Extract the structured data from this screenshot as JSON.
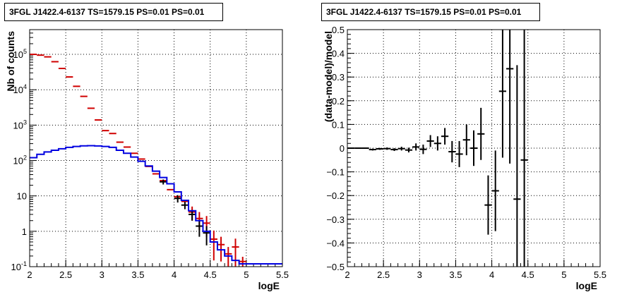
{
  "panels": {
    "left_title": "3FGL J1422.4-6137 TS=1579.15 PS=0.01 PS=0.01",
    "right_title": "3FGL J1422.4-6137 TS=1579.15 PS=0.01 PS=0.01"
  },
  "chart_data": [
    {
      "type": "line",
      "title": "3FGL J1422.4-6137 TS=1579.15 PS=0.01 PS=0.01",
      "xlabel": "logE",
      "ylabel": "Nb of counts",
      "xlim": [
        2,
        5.5
      ],
      "ylim": [
        0.1,
        500000
      ],
      "yscale": "log",
      "grid": true,
      "x_ticks": [
        "2",
        "2.5",
        "3",
        "3.5",
        "4",
        "4.5",
        "5",
        "5.5"
      ],
      "y_ticks": [
        "10^{-1}",
        "1",
        "10",
        "10^{2}",
        "10^{3}",
        "10^{4}",
        "10^{5}"
      ],
      "x_bin_width": 0.1,
      "series": [
        {
          "color": "#d00000",
          "style": "errorbar",
          "points": [
            {
              "x": 2.05,
              "y": 100000,
              "err": 0
            },
            {
              "x": 2.15,
              "y": 95000,
              "err": 0
            },
            {
              "x": 2.25,
              "y": 85000,
              "err": 0
            },
            {
              "x": 2.35,
              "y": 62000,
              "err": 0
            },
            {
              "x": 2.45,
              "y": 40000,
              "err": 0
            },
            {
              "x": 2.55,
              "y": 23000,
              "err": 0
            },
            {
              "x": 2.65,
              "y": 12500,
              "err": 0
            },
            {
              "x": 2.75,
              "y": 6500,
              "err": 0
            },
            {
              "x": 2.85,
              "y": 3000,
              "err": 0
            },
            {
              "x": 2.95,
              "y": 1400,
              "err": 0
            },
            {
              "x": 3.05,
              "y": 700,
              "err": 0
            },
            {
              "x": 3.15,
              "y": 580,
              "err": 0
            },
            {
              "x": 3.25,
              "y": 330,
              "err": 0
            },
            {
              "x": 3.35,
              "y": 240,
              "err": 0
            },
            {
              "x": 3.45,
              "y": 160,
              "err": 0
            },
            {
              "x": 3.55,
              "y": 110,
              "err": 0
            },
            {
              "x": 3.65,
              "y": 68,
              "err": 0
            },
            {
              "x": 3.75,
              "y": 42,
              "err": 0
            },
            {
              "x": 3.85,
              "y": 27,
              "err": 0
            },
            {
              "x": 3.95,
              "y": 15,
              "err": 0
            },
            {
              "x": 4.05,
              "y": 9.5,
              "err": 0
            },
            {
              "x": 4.15,
              "y": 7,
              "err": 0
            },
            {
              "x": 4.25,
              "y": 3.5,
              "err": 1.5
            },
            {
              "x": 4.35,
              "y": 2.3,
              "err": 1.2
            },
            {
              "x": 4.45,
              "y": 1.7,
              "err": 1.0
            },
            {
              "x": 4.55,
              "y": 0.6,
              "err": 0.45
            },
            {
              "x": 4.65,
              "y": 0.42,
              "err": 0.28
            },
            {
              "x": 4.75,
              "y": 0.23,
              "err": 0.13
            },
            {
              "x": 4.85,
              "y": 0.36,
              "err": 0.26
            },
            {
              "x": 4.95,
              "y": 0.14,
              "err": 0.05
            }
          ]
        },
        {
          "color": "#000000",
          "style": "errorbar",
          "points": [
            {
              "x": 3.85,
              "y": 25,
              "err": 4
            },
            {
              "x": 4.05,
              "y": 8.5,
              "err": 2
            },
            {
              "x": 4.15,
              "y": 5.5,
              "err": 1.3
            },
            {
              "x": 4.25,
              "y": 3.0,
              "err": 1.0
            },
            {
              "x": 4.35,
              "y": 1.4,
              "err": 0.7
            },
            {
              "x": 4.45,
              "y": 0.9,
              "err": 0.5
            }
          ]
        },
        {
          "color": "#0000e0",
          "style": "histogram",
          "bins": [
            {
              "x": 2.05,
              "y": 120
            },
            {
              "x": 2.15,
              "y": 150
            },
            {
              "x": 2.25,
              "y": 175
            },
            {
              "x": 2.35,
              "y": 195
            },
            {
              "x": 2.45,
              "y": 215
            },
            {
              "x": 2.55,
              "y": 235
            },
            {
              "x": 2.65,
              "y": 250
            },
            {
              "x": 2.75,
              "y": 260
            },
            {
              "x": 2.85,
              "y": 262
            },
            {
              "x": 2.95,
              "y": 258
            },
            {
              "x": 3.05,
              "y": 250
            },
            {
              "x": 3.15,
              "y": 235
            },
            {
              "x": 3.25,
              "y": 195
            },
            {
              "x": 3.35,
              "y": 160
            },
            {
              "x": 3.45,
              "y": 125
            },
            {
              "x": 3.55,
              "y": 95
            },
            {
              "x": 3.65,
              "y": 70
            },
            {
              "x": 3.75,
              "y": 50
            },
            {
              "x": 3.85,
              "y": 33
            },
            {
              "x": 3.95,
              "y": 22
            },
            {
              "x": 4.05,
              "y": 13
            },
            {
              "x": 4.15,
              "y": 7.5
            },
            {
              "x": 4.25,
              "y": 3.8
            },
            {
              "x": 4.35,
              "y": 2.0
            },
            {
              "x": 4.45,
              "y": 1.0
            },
            {
              "x": 4.55,
              "y": 0.5
            },
            {
              "x": 4.65,
              "y": 0.3
            },
            {
              "x": 4.75,
              "y": 0.2
            },
            {
              "x": 4.85,
              "y": 0.15
            },
            {
              "x": 4.95,
              "y": 0.12
            }
          ]
        }
      ]
    },
    {
      "type": "scatter",
      "title": "3FGL J1422.4-6137 TS=1579.15 PS=0.01 PS=0.01",
      "xlabel": "logE",
      "ylabel": "(data-model)/model",
      "xlim": [
        2,
        5.5
      ],
      "ylim": [
        -0.5,
        0.5
      ],
      "grid": true,
      "x_ticks": [
        "2",
        "2.5",
        "3",
        "3.5",
        "4",
        "4.5",
        "5",
        "5.5"
      ],
      "y_ticks": [
        "−0.5",
        "−0.4",
        "−0.3",
        "−0.2",
        "−0.1",
        "0",
        "0.1",
        "0.2",
        "0.3",
        "0.4",
        "0.5"
      ],
      "x_bin_width": 0.1,
      "series": [
        {
          "color": "#000000",
          "style": "errorbar",
          "points": [
            {
              "x": 2.05,
              "y": 0.0,
              "err": 0.003
            },
            {
              "x": 2.15,
              "y": 0.0,
              "err": 0.003
            },
            {
              "x": 2.25,
              "y": 0.0,
              "err": 0.003
            },
            {
              "x": 2.35,
              "y": -0.006,
              "err": 0.004
            },
            {
              "x": 2.45,
              "y": -0.003,
              "err": 0.004
            },
            {
              "x": 2.55,
              "y": -0.002,
              "err": 0.005
            },
            {
              "x": 2.65,
              "y": -0.006,
              "err": 0.006
            },
            {
              "x": 2.75,
              "y": -0.002,
              "err": 0.008
            },
            {
              "x": 2.85,
              "y": -0.008,
              "err": 0.01
            },
            {
              "x": 2.95,
              "y": 0.005,
              "err": 0.015
            },
            {
              "x": 3.05,
              "y": -0.005,
              "err": 0.02
            },
            {
              "x": 3.15,
              "y": 0.03,
              "err": 0.025
            },
            {
              "x": 3.25,
              "y": 0.02,
              "err": 0.03
            },
            {
              "x": 3.35,
              "y": 0.05,
              "err": 0.035
            },
            {
              "x": 3.45,
              "y": -0.015,
              "err": 0.045
            },
            {
              "x": 3.55,
              "y": -0.025,
              "err": 0.055
            },
            {
              "x": 3.65,
              "y": 0.035,
              "err": 0.065
            },
            {
              "x": 3.75,
              "y": 0.0,
              "err": 0.075
            },
            {
              "x": 3.85,
              "y": 0.06,
              "err": 0.11
            },
            {
              "x": 3.95,
              "y": -0.24,
              "err": 0.125
            },
            {
              "x": 4.05,
              "y": -0.18,
              "err": 0.17
            },
            {
              "x": 4.15,
              "y": 0.24,
              "err": 0.28
            },
            {
              "x": 4.25,
              "y": 0.335,
              "err": 0.4
            },
            {
              "x": 4.35,
              "y": -0.215,
              "err": 0.565
            },
            {
              "x": 4.45,
              "y": -0.05,
              "err": 0.8
            }
          ]
        }
      ]
    }
  ]
}
